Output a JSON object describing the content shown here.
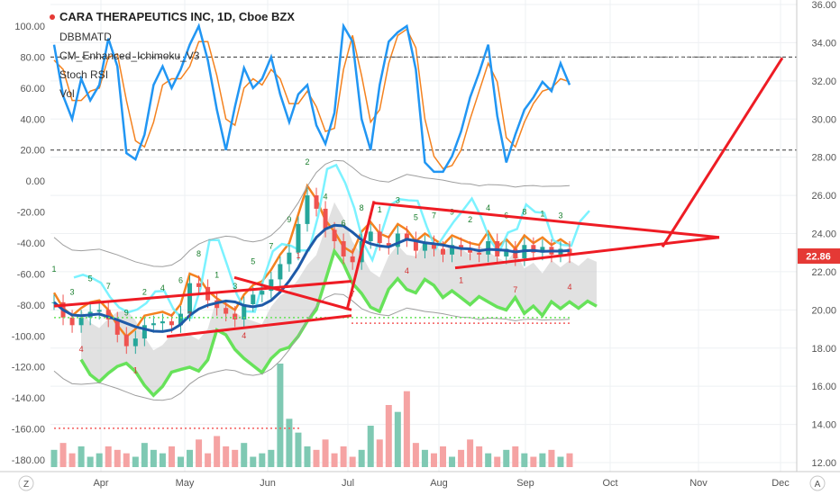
{
  "header": {
    "title": "CARA THERAPEUTICS INC, 1D, Cboe BZX",
    "indicators": [
      "DBBMATD",
      "CM_Enhanced_Ichimoku_V3",
      "Stoch RSI",
      "Vol"
    ]
  },
  "price_badge": {
    "value": "22.86",
    "color": "#e53935"
  },
  "footer": {
    "z_label": "Z",
    "a_label": "A"
  },
  "colors": {
    "stoch_k": "#2196f3",
    "stoch_d": "#f4821f",
    "trend_line": "#ee1c24",
    "kumo_green": "#67e25a",
    "kumo_red": "#f45d5d",
    "cloud_fill": "#c8c8c8",
    "lagging_span": "#64f0ff",
    "price_ma": "#1e5aa8",
    "vol_up": "#7fc9b3",
    "vol_down": "#f5a3a3"
  },
  "chart_data": {
    "type": "line",
    "title": "CARA THERAPEUTICS INC, 1D, Cboe BZX",
    "x_ticks": [
      "Apr",
      "May",
      "Jun",
      "Jul",
      "Aug",
      "Sep",
      "Oct",
      "Nov",
      "Dec"
    ],
    "right_axis": {
      "ticks": [
        "36.00",
        "34.00",
        "32.00",
        "30.00",
        "28.00",
        "26.00",
        "24.00",
        "22.00",
        "20.00",
        "18.00",
        "16.00",
        "14.00",
        "12.00"
      ],
      "range": [
        12,
        36
      ]
    },
    "left_axis": {
      "ticks": [
        "100.00",
        "80.00",
        "60.00",
        "40.00",
        "20.00",
        "0.00",
        "-20.00",
        "-40.00",
        "-60.00",
        "-80.00",
        "-100.00",
        "-120.00",
        "-140.00",
        "-160.00",
        "-180.00"
      ],
      "range": [
        -180,
        100
      ]
    },
    "stoch_levels": [
      80,
      20
    ],
    "last_price": 22.86,
    "series": [
      {
        "name": "Stoch RSI %K",
        "values": [
          88,
          55,
          40,
          66,
          52,
          62,
          92,
          74,
          18,
          14,
          30,
          62,
          74,
          60,
          72,
          88,
          100,
          78,
          46,
          20,
          48,
          73,
          60,
          66,
          80,
          56,
          38,
          56,
          62,
          36,
          24,
          44,
          100,
          90,
          40,
          20,
          62,
          90,
          96,
          100,
          72,
          12,
          6,
          6,
          16,
          32,
          54,
          70,
          88,
          42,
          12,
          30,
          46,
          54,
          64,
          58,
          76,
          62
        ]
      },
      {
        "name": "Stoch RSI %D",
        "values": [
          78,
          72,
          52,
          52,
          58,
          60,
          80,
          82,
          52,
          26,
          22,
          38,
          62,
          66,
          66,
          74,
          90,
          90,
          68,
          40,
          36,
          60,
          66,
          62,
          72,
          66,
          50,
          50,
          58,
          48,
          32,
          34,
          72,
          94,
          68,
          38,
          46,
          76,
          94,
          98,
          86,
          40,
          16,
          8,
          10,
          20,
          40,
          58,
          76,
          64,
          28,
          22,
          38,
          50,
          58,
          60,
          66,
          64
        ]
      },
      {
        "name": "Close",
        "values": [
          20.4,
          19.6,
          19.2,
          19.6,
          19.9,
          20.0,
          19.5,
          18.7,
          18.1,
          18.5,
          19.2,
          19.3,
          19.4,
          19.2,
          19.8,
          21.4,
          21.2,
          20.5,
          20.1,
          19.8,
          19.5,
          20.3,
          20.8,
          21.0,
          21.6,
          22.4,
          23.0,
          24.5,
          26.0,
          25.3,
          24.2,
          23.6,
          22.8,
          22.5,
          23.6,
          24.1,
          23.5,
          23.3,
          24.0,
          23.7,
          23.1,
          23.5,
          23.2,
          22.9,
          23.4,
          23.2,
          23.0,
          22.9,
          23.6,
          22.8,
          23.2,
          22.7,
          23.4,
          23.0,
          23.3,
          22.9,
          23.2,
          22.86
        ]
      }
    ],
    "volume": [
      5,
      7,
      4,
      6,
      3,
      4,
      6,
      5,
      4,
      3,
      7,
      5,
      4,
      6,
      3,
      5,
      8,
      4,
      9,
      6,
      5,
      7,
      3,
      4,
      5,
      30,
      14,
      10,
      6,
      5,
      8,
      4,
      6,
      3,
      5,
      12,
      8,
      18,
      16,
      22,
      7,
      5,
      4,
      6,
      3,
      5,
      8,
      6,
      4,
      3,
      5,
      6,
      4,
      3,
      4,
      5,
      3,
      4
    ]
  }
}
